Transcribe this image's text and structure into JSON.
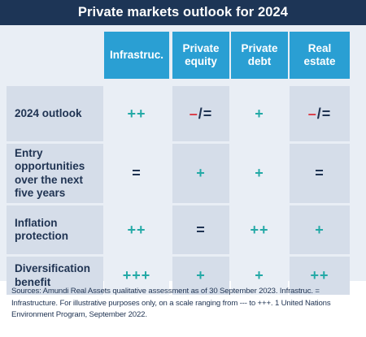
{
  "title": "Private markets outlook for 2024",
  "columns": [
    "Infrastruc.",
    "Private\nequity",
    "Private\ndebt",
    "Real\nestate"
  ],
  "rows": [
    {
      "label": "2024 outlook",
      "values": [
        "++",
        "–/=",
        "+",
        "–/="
      ]
    },
    {
      "label": "Entry opportunities over the next five years",
      "values": [
        "=",
        "+",
        "+",
        "="
      ]
    },
    {
      "label": "Inflation protection",
      "values": [
        "++",
        "=",
        "++",
        "+"
      ]
    },
    {
      "label": "Diversification benefit",
      "values": [
        "+++",
        "+",
        "+",
        "++"
      ]
    }
  ],
  "footnote": "Sources: Amundi Real Assets qualitative assessment as of 30 September 2023. Infrastruc. = Infrastructure. For illustrative purposes only, on a scale ranging from --- to +++. 1 United Nations Environment Program, September 2022.",
  "colors": {
    "title_bg": "#1d3556",
    "header_bg": "#2a9fd3",
    "plus": "#23a9a6",
    "equal": "#1f3352",
    "minus": "#d93641",
    "row_band": "#d5dde9",
    "panel_bg": "#e9eef5"
  }
}
